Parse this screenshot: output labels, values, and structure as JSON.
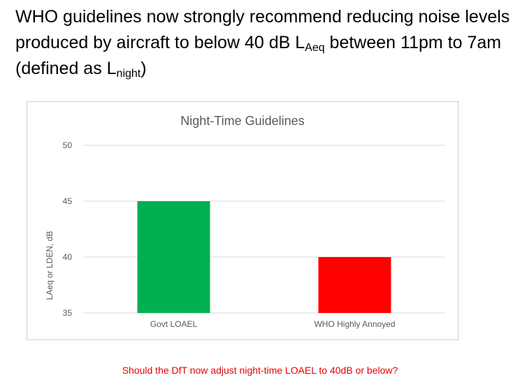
{
  "slide": {
    "title_part1": "WHO guidelines now strongly recommend reducing noise levels produced by aircraft to below 40 dB L",
    "title_sub1": "Aeq",
    "title_part2": " between 11pm to 7am (defined as L",
    "title_sub2": "night",
    "title_part3": ")",
    "footer": "Should the DfT now adjust night-time LOAEL to 40dB or below?"
  },
  "colors": {
    "bar_govt": "#00b050",
    "bar_who": "#ff0000",
    "footer_text": "#e60000",
    "gridline": "#d9d9d9",
    "axis_text": "#595959"
  },
  "chart_data": {
    "type": "bar",
    "title": "Night-Time Guidelines",
    "ylabel": "LAeq or LDEN, dB",
    "xlabel": "",
    "categories": [
      "Govt LOAEL",
      "WHO Highly Annoyed"
    ],
    "values": [
      45,
      40
    ],
    "bar_colors": [
      "#00b050",
      "#ff0000"
    ],
    "ylim": [
      35,
      50
    ],
    "yticks": [
      35,
      40,
      45,
      50
    ],
    "grid": true,
    "legend": "none"
  }
}
